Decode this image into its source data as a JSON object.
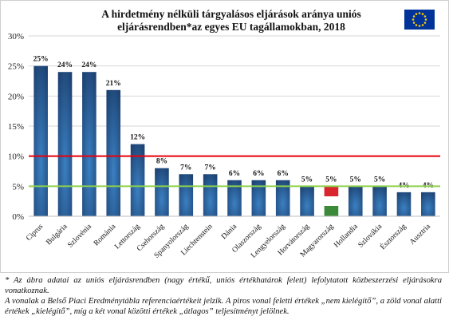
{
  "title_line1": "A hirdetmény nélküli tárgyalásos eljárások aránya uniós",
  "title_line2": "eljárásrendben*az egyes EU tagállamokban, 2018",
  "footnote_1": "* Az ábra adatai az uniós eljárásrendben (nagy értékű, uniós értékhatárok felett) lefolytatott közbeszerzési eljárásokra vonatkoznak.",
  "footnote_2": "A vonalak a Belső Piaci Eredménytábla referenciaértékeit jelzik. A piros vonal feletti értékek „nem kielégítő”, a zöld vonal alatti értékek „kielégítő”, míg a két vonal közötti értékek „átlagos” teljesítményt jelölnek.",
  "colors": {
    "bar": "#1d4272",
    "bar_highlight": "#3b80c2",
    "red_line": "#e8000b",
    "green_line": "#8dd14b",
    "flag_blue": "#003399",
    "flag_star": "#ffcc00"
  },
  "chart_data": {
    "type": "bar",
    "categories": [
      "Ciprus",
      "Bulgária",
      "Szlovénia",
      "Románia",
      "Lettország",
      "Csehország",
      "Spanyolország",
      "Liechtenstein",
      "Dánia",
      "Olaszország",
      "Lengyelország",
      "Horvátország",
      "Magyarország",
      "Hollandia",
      "Szlovákia",
      "Észtország",
      "Ausztria"
    ],
    "values": [
      25,
      24,
      24,
      21,
      12,
      8,
      7,
      7,
      6,
      6,
      6,
      5,
      5,
      5,
      5,
      4,
      4
    ],
    "data_labels": [
      "25%",
      "24%",
      "24%",
      "21%",
      "12%",
      "8%",
      "7%",
      "7%",
      "6%",
      "6%",
      "6%",
      "5%",
      "5%",
      "5%",
      "5%",
      "4%",
      "4%"
    ],
    "highlight_category": "Magyarország",
    "ylim": [
      0,
      30
    ],
    "yticks": [
      0,
      5,
      10,
      15,
      20,
      25,
      30
    ],
    "ytick_labels": [
      "0%",
      "5%",
      "10%",
      "15%",
      "20%",
      "25%",
      "30%"
    ],
    "reference_lines": [
      {
        "value": 10,
        "color": "red"
      },
      {
        "value": 5,
        "color": "green"
      }
    ],
    "grid": "horizontal",
    "legend": "none"
  }
}
